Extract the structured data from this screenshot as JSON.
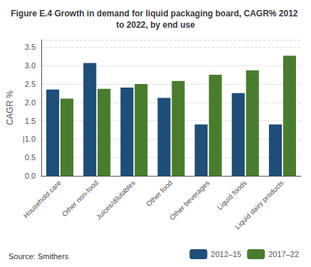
{
  "chart_data": {
    "type": "bar",
    "title": "Figure E.4 Growth in demand for liquid packaging board, CAGR% 2012 to 2022, by end use",
    "categories": [
      "Household care",
      "Other non-food",
      "Juices/dilutables",
      "Other food",
      "Other beverages",
      "Liquid foods",
      "Liquid dairy products"
    ],
    "series": [
      {
        "name": "2012–15",
        "color": "#1f4e79",
        "values": [
          2.35,
          3.07,
          2.4,
          2.12,
          1.4,
          2.25,
          1.4
        ]
      },
      {
        "name": "2017–22",
        "color": "#4a7c2f",
        "values": [
          2.1,
          2.37,
          2.5,
          2.58,
          2.75,
          2.87,
          3.27
        ]
      }
    ],
    "ylabel": "CAGR %",
    "ylim": [
      0,
      3.7
    ],
    "yticks": [
      {
        "value": 0.0,
        "label": "0.0"
      },
      0.5,
      {
        "value": 1.0,
        "label": "|1.0"
      },
      1.5,
      {
        "value": 2.0,
        "label": "2.0"
      },
      2.5,
      {
        "value": 3.0,
        "label": "3.0"
      },
      3.5
    ],
    "grid": true,
    "legend": "bottom",
    "annotations": [
      "Source: Smithers"
    ]
  }
}
